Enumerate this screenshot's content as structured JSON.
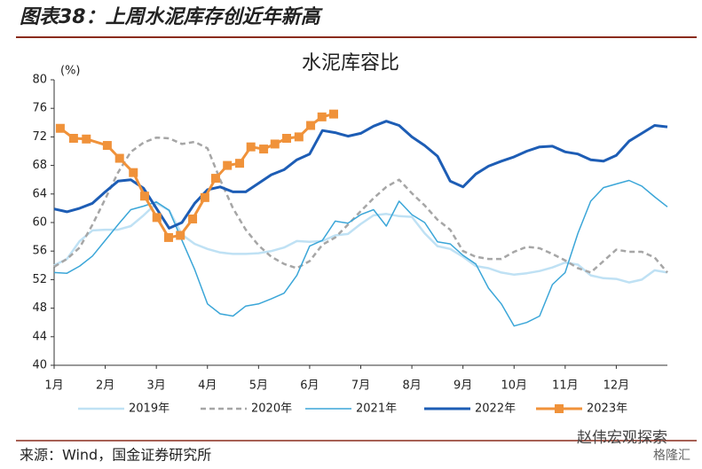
{
  "header": {
    "title": "图表38：上周水泥库存创近年新高"
  },
  "chart_data": {
    "type": "line",
    "title": "水泥库容比",
    "y_unit": "(%)",
    "xlim": [
      1,
      13
    ],
    "xticks": [
      {
        "value": 1,
        "label": "1月"
      },
      {
        "value": 2,
        "label": "2月"
      },
      {
        "value": 3,
        "label": "3月"
      },
      {
        "value": 4,
        "label": "4月"
      },
      {
        "value": 5,
        "label": "5月"
      },
      {
        "value": 6,
        "label": "6月"
      },
      {
        "value": 7,
        "label": "7月"
      },
      {
        "value": 8,
        "label": "8月"
      },
      {
        "value": 9,
        "label": "9月"
      },
      {
        "value": 10,
        "label": "10月"
      },
      {
        "value": 11,
        "label": "11月"
      },
      {
        "value": 12,
        "label": "12月"
      }
    ],
    "ylim": [
      40,
      80
    ],
    "yticks": [
      40,
      44,
      48,
      52,
      56,
      60,
      64,
      68,
      72,
      76,
      80
    ],
    "x": [
      1,
      1.25,
      1.5,
      1.75,
      2,
      2.25,
      2.5,
      2.75,
      3,
      3.25,
      3.5,
      3.75,
      4,
      4.25,
      4.5,
      4.75,
      5,
      5.25,
      5.5,
      5.75,
      6,
      6.25,
      6.5,
      6.75,
      7,
      7.25,
      7.5,
      7.75,
      8,
      8.25,
      8.5,
      8.75,
      9,
      9.25,
      9.5,
      9.75,
      10,
      10.25,
      10.5,
      10.75,
      11,
      11.25,
      11.5,
      11.75,
      12,
      12.25,
      12.5,
      12.75,
      13
    ],
    "series": [
      {
        "name": "2019年",
        "color": "#bfe1f4",
        "dash": false,
        "width": 2.5,
        "values": [
          54.0,
          54.9,
          57.4,
          58.9,
          59.0,
          59.0,
          59.5,
          61.0,
          62.7,
          61.7,
          58.3,
          57.0,
          56.3,
          55.8,
          55.6,
          55.6,
          55.7,
          56.0,
          56.5,
          57.4,
          57.3,
          57.4,
          58.2,
          58.4,
          59.8,
          61.0,
          61.2,
          60.9,
          60.8,
          58.5,
          56.7,
          56.3,
          55.2,
          53.9,
          53.6,
          53.0,
          52.7,
          52.9,
          53.2,
          53.7,
          54.4,
          54.1,
          52.6,
          52.2,
          52.1,
          51.6,
          52.0,
          53.3,
          53.0
        ]
      },
      {
        "name": "2020年",
        "color": "#a6a6a6",
        "dash": true,
        "width": 2.5,
        "values": [
          53.8,
          54.9,
          56.5,
          59.7,
          63.3,
          67.0,
          69.9,
          71.2,
          71.9,
          71.8,
          71.0,
          71.3,
          70.4,
          66.0,
          62.0,
          59.0,
          56.8,
          55.2,
          54.2,
          53.6,
          54.6,
          56.9,
          57.9,
          59.7,
          61.6,
          63.4,
          65.0,
          66.0,
          64.1,
          62.4,
          60.4,
          59.0,
          56.0,
          55.2,
          54.9,
          54.9,
          55.9,
          56.6,
          56.4,
          55.6,
          54.7,
          53.6,
          53.0,
          54.6,
          56.2,
          55.9,
          55.9,
          55.1,
          53.0
        ]
      },
      {
        "name": "2021年",
        "color": "#3ba6d8",
        "dash": false,
        "width": 1.5,
        "values": [
          53.0,
          52.9,
          53.9,
          55.3,
          57.5,
          59.7,
          61.8,
          62.3,
          62.9,
          61.7,
          57.5,
          53.4,
          48.6,
          47.2,
          46.9,
          48.3,
          48.6,
          49.3,
          50.1,
          52.6,
          56.7,
          57.5,
          60.2,
          59.9,
          61.1,
          61.8,
          59.5,
          63.0,
          61.1,
          60.0,
          57.3,
          57.0,
          55.4,
          54.2,
          50.8,
          48.6,
          45.5,
          46.0,
          46.9,
          51.3,
          53.0,
          58.5,
          63.0,
          64.9,
          65.4,
          65.9,
          65.1,
          63.6,
          62.2
        ]
      },
      {
        "name": "2022年",
        "color": "#1d5db5",
        "dash": false,
        "width": 3,
        "values": [
          61.9,
          61.5,
          62.0,
          62.7,
          64.3,
          65.8,
          66.0,
          64.8,
          62.0,
          59.2,
          60.0,
          62.7,
          64.6,
          65.0,
          64.3,
          64.3,
          65.5,
          66.7,
          67.4,
          68.8,
          69.6,
          72.9,
          72.6,
          72.1,
          72.5,
          73.5,
          74.2,
          73.6,
          72.0,
          70.8,
          69.3,
          65.8,
          65.0,
          66.8,
          67.9,
          68.6,
          69.2,
          70.0,
          70.6,
          70.7,
          69.9,
          69.6,
          68.8,
          68.6,
          69.4,
          71.4,
          72.5,
          73.6,
          73.4
        ]
      },
      {
        "name": "2023年",
        "color": "#f0923a",
        "dash": false,
        "width": 3,
        "markers": true,
        "x": [
          1.12,
          1.38,
          1.63,
          2.04,
          2.28,
          2.55,
          2.77,
          3.01,
          3.24,
          3.47,
          3.71,
          3.95,
          4.16,
          4.39,
          4.63,
          4.85,
          5.1,
          5.32,
          5.55,
          5.79,
          6.02,
          6.24,
          6.47
        ],
        "values": [
          73.2,
          71.8,
          71.7,
          70.8,
          69.0,
          67.0,
          63.7,
          60.7,
          57.9,
          58.2,
          60.5,
          63.5,
          66.2,
          68.0,
          68.3,
          70.6,
          70.3,
          71.0,
          71.8,
          72.0,
          73.6,
          74.8,
          75.2
        ]
      }
    ]
  },
  "source": "来源：Wind，国金证券研究所",
  "watermark": "赵伟宏观探索",
  "watermark2": "格隆汇"
}
